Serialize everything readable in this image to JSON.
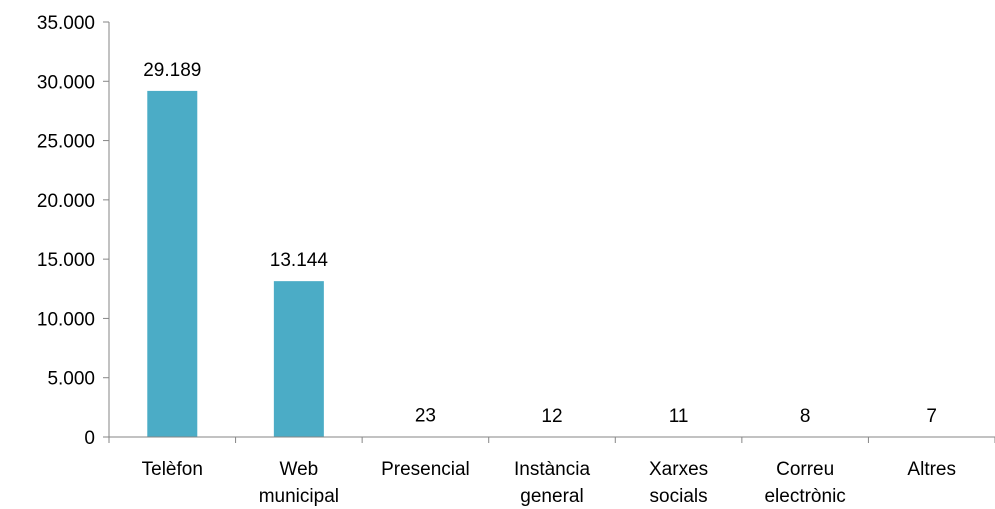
{
  "chart_data": {
    "type": "bar",
    "title": "",
    "xlabel": "",
    "ylabel": "",
    "categories": [
      [
        "Telèfon"
      ],
      [
        "Web",
        "municipal"
      ],
      [
        "Presencial"
      ],
      [
        "Instància",
        "general"
      ],
      [
        "Xarxes",
        "socials"
      ],
      [
        "Correu",
        "electrònic"
      ],
      [
        "Altres"
      ]
    ],
    "values": [
      29189,
      13144,
      23,
      12,
      11,
      8,
      7
    ],
    "value_labels": [
      "29.189",
      "13.144",
      "23",
      "12",
      "11",
      "8",
      "7"
    ],
    "ylim": [
      0,
      35000
    ],
    "yticks": [
      0,
      5000,
      10000,
      15000,
      20000,
      25000,
      30000,
      35000
    ],
    "ytick_labels": [
      "0",
      "5.000",
      "10.000",
      "15.000",
      "20.000",
      "25.000",
      "30.000",
      "35.000"
    ],
    "grid": false,
    "legend": "none",
    "colors": {
      "bar": "#4BACC6",
      "axis": "#868686",
      "text": "#000000"
    }
  }
}
